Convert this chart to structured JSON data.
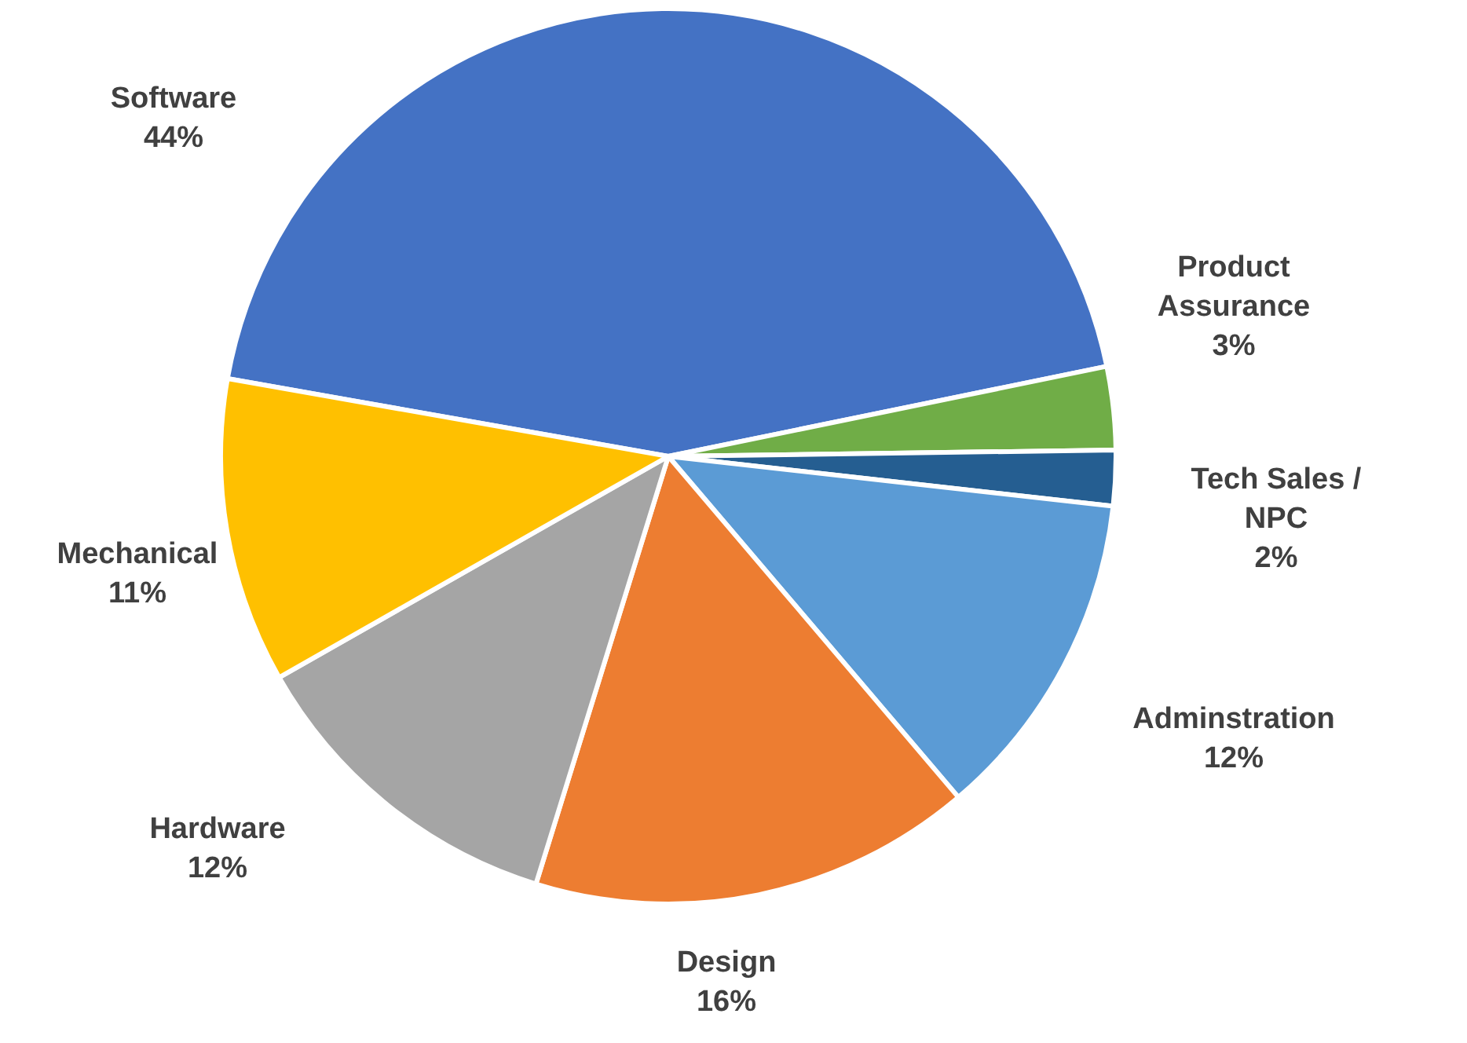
{
  "chart_data": {
    "type": "pie",
    "categories": [
      "Software",
      "Product Assurance",
      "Tech Sales / NPC",
      "Adminstration",
      "Design",
      "Hardware",
      "Mechanical"
    ],
    "values": [
      44,
      3,
      2,
      12,
      16,
      12,
      11
    ],
    "value_labels": [
      "44%",
      "3%",
      "2%",
      "12%",
      "16%",
      "12%",
      "11%"
    ],
    "colors": [
      "#4472c4",
      "#70ad47",
      "#255e91",
      "#5b9bd5",
      "#ed7d31",
      "#a5a5a5",
      "#ffc000"
    ]
  }
}
